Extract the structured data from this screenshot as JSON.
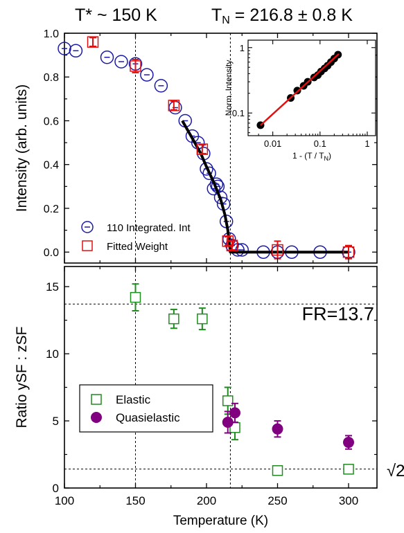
{
  "titles": {
    "left": "T* ~ 150 K",
    "right_prefix": "T",
    "right_sub": "N",
    "right_rest": " = 216.8 ± 0.8 K"
  },
  "colors": {
    "integrated": "#1a1aa6",
    "fitted": "#e01010",
    "elastic": "#1e8c1e",
    "quasielastic": "#800080",
    "fit_line": "#000000",
    "inset_line": "#e01010"
  },
  "chart_data": [
    {
      "type": "scatter",
      "panel": "top",
      "ylabel": "Intensity (arb. units)",
      "xlim": [
        100,
        320
      ],
      "ylim": [
        -0.05,
        1.0
      ],
      "xticks": [
        100,
        150,
        200,
        250,
        300
      ],
      "yticks": [
        0.0,
        0.2,
        0.4,
        0.6,
        0.8,
        1.0
      ],
      "ytick_labels": [
        "0.0",
        "0.2",
        "0.4",
        "0.6",
        "0.8",
        "1.0"
      ],
      "vlines": [
        150,
        216.8
      ],
      "legend": {
        "placement": "lower-left",
        "entries": [
          "110 Integrated. Int",
          "Fitted Weight"
        ]
      },
      "series": [
        {
          "name": "110 Integrated. Int",
          "marker": "open-circle",
          "x": [
            100,
            108,
            130,
            140,
            150,
            158,
            168,
            178,
            185,
            190,
            194,
            198,
            200,
            202,
            205,
            207,
            208,
            210,
            212,
            214,
            216,
            218,
            222,
            225,
            240,
            250,
            260,
            280,
            300
          ],
          "y": [
            0.93,
            0.92,
            0.89,
            0.87,
            0.86,
            0.81,
            0.76,
            0.66,
            0.6,
            0.53,
            0.5,
            0.45,
            0.38,
            0.36,
            0.29,
            0.31,
            0.3,
            0.25,
            0.22,
            0.14,
            0.06,
            0.03,
            0.01,
            0.01,
            0.0,
            0.0,
            0.0,
            0.0,
            0.0
          ]
        },
        {
          "name": "Fitted Weight",
          "marker": "open-square",
          "x": [
            120,
            150,
            177,
            197,
            215,
            218,
            250,
            300
          ],
          "y": [
            0.96,
            0.85,
            0.67,
            0.47,
            0.05,
            0.03,
            0.01,
            0.0
          ],
          "err": [
            0.02,
            0.03,
            0.02,
            0.02,
            0.02,
            0.02,
            0.04,
            0.03
          ]
        },
        {
          "name": "fit",
          "marker": "line",
          "x": [
            183,
            190,
            196,
            200,
            205,
            210,
            213,
            215,
            216.8,
            300
          ],
          "y": [
            0.6,
            0.52,
            0.45,
            0.39,
            0.32,
            0.24,
            0.17,
            0.1,
            0.0,
            0.0
          ]
        }
      ]
    },
    {
      "type": "scatter",
      "panel": "inset",
      "xlabel_prefix": "1 - (T / T",
      "xlabel_sub": "N",
      "xlabel_suffix": ")",
      "ylabel": "Norm. Intensity",
      "xscale": "log",
      "yscale": "log",
      "xlim": [
        0.003,
        1.5
      ],
      "ylim": [
        0.045,
        1.3
      ],
      "xticks": [
        0.01,
        0.1,
        1
      ],
      "xtick_labels": [
        "0.01",
        "0.1",
        "1"
      ],
      "yticks": [
        0.1,
        1
      ],
      "ytick_labels": [
        "0.1",
        "1"
      ],
      "series": [
        {
          "name": "data",
          "marker": "filled-circle",
          "x": [
            0.0055,
            0.024,
            0.033,
            0.045,
            0.055,
            0.075,
            0.09,
            0.105,
            0.125,
            0.145,
            0.17,
            0.2,
            0.24
          ],
          "y": [
            0.065,
            0.17,
            0.22,
            0.26,
            0.3,
            0.35,
            0.38,
            0.43,
            0.48,
            0.53,
            0.6,
            0.68,
            0.78
          ]
        },
        {
          "name": "fit",
          "marker": "line",
          "x": [
            0.0055,
            0.25
          ],
          "y": [
            0.065,
            0.8
          ]
        }
      ]
    },
    {
      "type": "scatter",
      "panel": "bottom",
      "xlabel": "Temperature (K)",
      "ylabel": "Ratio ySF : zSF",
      "xlim": [
        100,
        320
      ],
      "ylim": [
        0,
        16.5
      ],
      "xticks": [
        100,
        150,
        200,
        250,
        300
      ],
      "xtick_labels": [
        "100",
        "150",
        "200",
        "250",
        "300"
      ],
      "yticks": [
        0,
        5,
        10,
        15
      ],
      "ytick_labels": [
        "0",
        "5",
        "10",
        "15"
      ],
      "vlines": [
        150,
        216.8
      ],
      "hlines": [
        13.7,
        1.414
      ],
      "annotations": [
        {
          "text": "FR=13.7",
          "x": 318,
          "y": 12.5,
          "anchor": "end"
        },
        {
          "text": "√2",
          "x": 330,
          "y": 1.4,
          "anchor": "start"
        }
      ],
      "legend": {
        "placement": "lower-left",
        "entries": [
          "Elastic",
          "Quasielastic"
        ]
      },
      "series": [
        {
          "name": "Elastic",
          "marker": "open-square",
          "x": [
            150,
            177,
            197,
            215,
            220,
            250,
            300
          ],
          "y": [
            14.2,
            12.6,
            12.6,
            6.5,
            4.5,
            1.3,
            1.4
          ],
          "err": [
            1.0,
            0.7,
            0.8,
            1.0,
            0.9,
            0.3,
            0.3
          ]
        },
        {
          "name": "Quasielastic",
          "marker": "filled-circle",
          "x": [
            215,
            220,
            250,
            300
          ],
          "y": [
            4.9,
            5.6,
            4.4,
            3.4
          ],
          "err": [
            0.8,
            0.7,
            0.6,
            0.5
          ]
        }
      ]
    }
  ]
}
